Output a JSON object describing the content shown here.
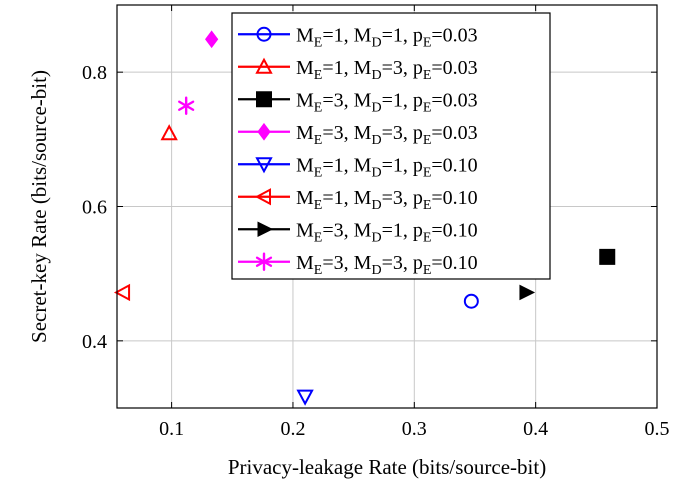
{
  "chart_data": {
    "type": "scatter",
    "title": "",
    "xlabel": "Privacy-leakage Rate (bits/source-bit)",
    "ylabel": "Secret-key Rate (bits/source-bit)",
    "xlim": [
      0.055,
      0.5
    ],
    "ylim": [
      0.3,
      0.9
    ],
    "xticks": [
      0.1,
      0.2,
      0.3,
      0.4,
      0.5
    ],
    "xtick_labels": [
      "0.1",
      "0.2",
      "0.3",
      "0.4",
      "0.5"
    ],
    "yticks": [
      0.4,
      0.6,
      0.8
    ],
    "ytick_labels": [
      "0.4",
      "0.6",
      "0.8"
    ],
    "grid": true,
    "legend_position": "top-right",
    "series": [
      {
        "name": "M_E=1, M_D=1, p_E=0.03",
        "ME": "1",
        "MD": "1",
        "pE": "0.03",
        "marker": "circle",
        "color": "#0000ff",
        "fill": "none",
        "x": [
          0.347
        ],
        "y": [
          0.459
        ]
      },
      {
        "name": "M_E=1, M_D=3, p_E=0.03",
        "ME": "1",
        "MD": "3",
        "pE": "0.03",
        "marker": "triangle-up",
        "color": "#ff0000",
        "fill": "none",
        "x": [
          0.098
        ],
        "y": [
          0.709
        ]
      },
      {
        "name": "M_E=3, M_D=1, p_E=0.03",
        "ME": "3",
        "MD": "1",
        "pE": "0.03",
        "marker": "square",
        "color": "#000000",
        "fill": "#000000",
        "x": [
          0.459
        ],
        "y": [
          0.525
        ]
      },
      {
        "name": "M_E=3, M_D=3, p_E=0.03",
        "ME": "3",
        "MD": "3",
        "pE": "0.03",
        "marker": "diamond",
        "color": "#ff00ff",
        "fill": "#ff00ff",
        "x": [
          0.133
        ],
        "y": [
          0.849
        ]
      },
      {
        "name": "M_E=1, M_D=1, p_E=0.10",
        "ME": "1",
        "MD": "1",
        "pE": "0.10",
        "marker": "triangle-down",
        "color": "#0000ff",
        "fill": "none",
        "x": [
          0.21
        ],
        "y": [
          0.317
        ]
      },
      {
        "name": "M_E=1, M_D=3, p_E=0.10",
        "ME": "1",
        "MD": "3",
        "pE": "0.10",
        "marker": "triangle-left",
        "color": "#ff0000",
        "fill": "none",
        "x": [
          0.06
        ],
        "y": [
          0.472
        ]
      },
      {
        "name": "M_E=3, M_D=1, p_E=0.10",
        "ME": "3",
        "MD": "1",
        "pE": "0.10",
        "marker": "triangle-right",
        "color": "#000000",
        "fill": "#000000",
        "x": [
          0.392
        ],
        "y": [
          0.472
        ]
      },
      {
        "name": "M_E=3, M_D=3, p_E=0.10",
        "ME": "3",
        "MD": "3",
        "pE": "0.10",
        "marker": "asterisk",
        "color": "#ff00ff",
        "fill": "none",
        "x": [
          0.112
        ],
        "y": [
          0.75
        ]
      }
    ]
  }
}
